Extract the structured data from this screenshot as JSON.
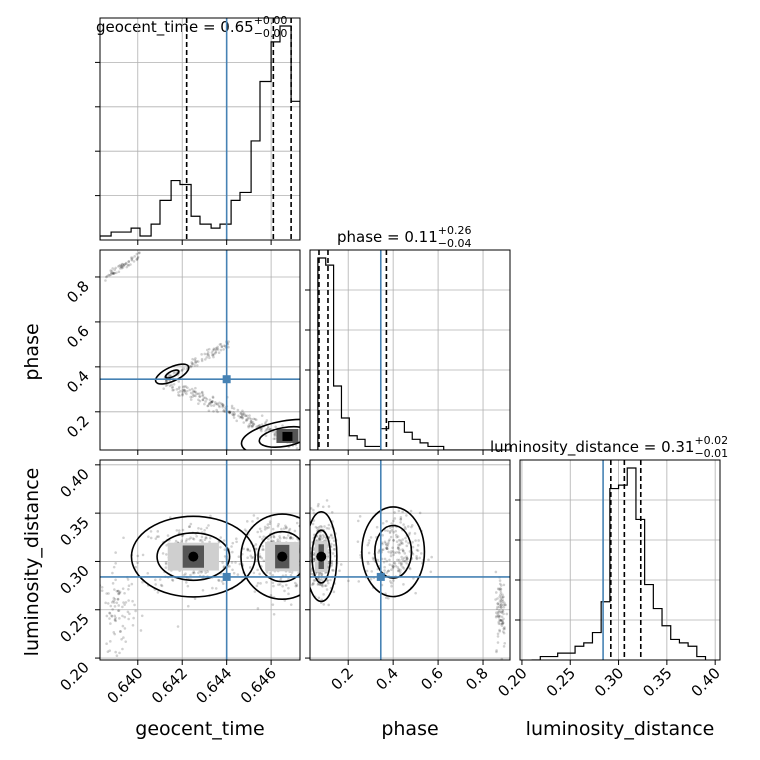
{
  "chart_data": {
    "type": "corner",
    "parameters": [
      "geocent_time",
      "phase",
      "luminosity_distance"
    ],
    "truths": {
      "geocent_time": 0.644,
      "phase": 0.345,
      "luminosity_distance": 0.284
    },
    "titles": [
      {
        "name": "geocent_time",
        "median": "0.65",
        "plus": "+0.00",
        "minus": "−0.00"
      },
      {
        "name": "phase",
        "median": "0.11",
        "plus": "+0.26",
        "minus": "−0.04"
      },
      {
        "name": "luminosity_distance",
        "median": "0.31",
        "plus": "+0.02",
        "minus": "−0.01"
      }
    ],
    "axis_labels": {
      "x": [
        "geocent_time",
        "phase",
        "luminosity_distance"
      ],
      "y": [
        "phase",
        "luminosity_distance"
      ]
    },
    "ranges": {
      "geocent_time": [
        0.6383,
        0.6473
      ],
      "phase": [
        0.03,
        0.92
      ],
      "luminosity_distance": [
        0.198,
        0.405
      ]
    },
    "ticks": {
      "geocent_time": [
        "0.640",
        "0.642",
        "0.644",
        "0.646"
      ],
      "phase": [
        "0.2",
        "0.4",
        "0.6",
        "0.8"
      ],
      "luminosity_distance": [
        "0.20",
        "0.25",
        "0.30",
        "0.35",
        "0.40"
      ]
    },
    "histograms": {
      "geocent_time": {
        "edges": [
          0.6383,
          0.6388,
          0.6392,
          0.6397,
          0.6401,
          0.6406,
          0.641,
          0.6415,
          0.6419,
          0.6424,
          0.6428,
          0.6433,
          0.6437,
          0.6442,
          0.6446,
          0.6451,
          0.6455,
          0.646,
          0.6464,
          0.6469,
          0.6473
        ],
        "counts": [
          1,
          2,
          2,
          3,
          1,
          4,
          10,
          15,
          14,
          6,
          4,
          3,
          4,
          10,
          12,
          25,
          40,
          50,
          54,
          35
        ],
        "quantiles": [
          0.6422,
          0.6461,
          0.6469
        ]
      },
      "phase": {
        "edges": [
          0.03,
          0.065,
          0.1,
          0.135,
          0.17,
          0.205,
          0.24,
          0.275,
          0.31,
          0.345,
          0.38,
          0.415,
          0.45,
          0.485,
          0.52,
          0.555,
          0.59,
          0.625,
          0.66,
          0.695,
          0.73,
          0.765,
          0.8,
          0.835,
          0.87,
          0.905
        ],
        "counts": [
          0,
          54,
          52,
          18,
          9,
          4,
          3,
          1,
          1,
          6,
          8,
          8,
          5,
          3,
          2,
          1,
          1,
          0,
          0,
          0,
          0,
          0,
          0,
          0,
          0
        ],
        "quantiles": [
          0.07,
          0.11,
          0.37
        ]
      },
      "luminosity_distance": {
        "edges": [
          0.21,
          0.219,
          0.228,
          0.237,
          0.246,
          0.255,
          0.264,
          0.273,
          0.282,
          0.291,
          0.3,
          0.309,
          0.318,
          0.327,
          0.336,
          0.345,
          0.354,
          0.363,
          0.372,
          0.381,
          0.39
        ],
        "counts": [
          0,
          1,
          1,
          2,
          2,
          4,
          5,
          8,
          17,
          50,
          51,
          56,
          41,
          22,
          15,
          10,
          6,
          5,
          4,
          1
        ],
        "quantiles": [
          0.292,
          0.306,
          0.323
        ]
      }
    },
    "scatter": {
      "phase_vs_geocent_time": [
        {
          "x0": 0.6384,
          "y0": 0.79,
          "x1": 0.6401,
          "y1": 0.9,
          "n": 55,
          "spread": 0.01
        },
        {
          "x0": 0.6412,
          "y0": 0.35,
          "x1": 0.6441,
          "y1": 0.5,
          "n": 85,
          "spread": 0.012
        },
        {
          "x0": 0.6412,
          "y0": 0.34,
          "x1": 0.6472,
          "y1": 0.06,
          "n": 260,
          "spread": 0.015
        }
      ],
      "luminosity_distance_vs_geocent_time": [
        {
          "cx": 0.6425,
          "cy": 0.305,
          "sx": 0.0012,
          "sy": 0.018,
          "n": 260
        },
        {
          "cx": 0.6465,
          "cy": 0.305,
          "sx": 0.0008,
          "sy": 0.019,
          "n": 320
        },
        {
          "cx": 0.6391,
          "cy": 0.25,
          "sx": 0.0004,
          "sy": 0.02,
          "n": 90
        }
      ],
      "luminosity_distance_vs_phase": [
        {
          "cx": 0.08,
          "cy": 0.305,
          "sx": 0.03,
          "sy": 0.02,
          "n": 300
        },
        {
          "cx": 0.4,
          "cy": 0.31,
          "sx": 0.06,
          "sy": 0.02,
          "n": 220
        },
        {
          "cx": 0.88,
          "cy": 0.25,
          "sx": 0.012,
          "sy": 0.02,
          "n": 90
        }
      ]
    }
  }
}
